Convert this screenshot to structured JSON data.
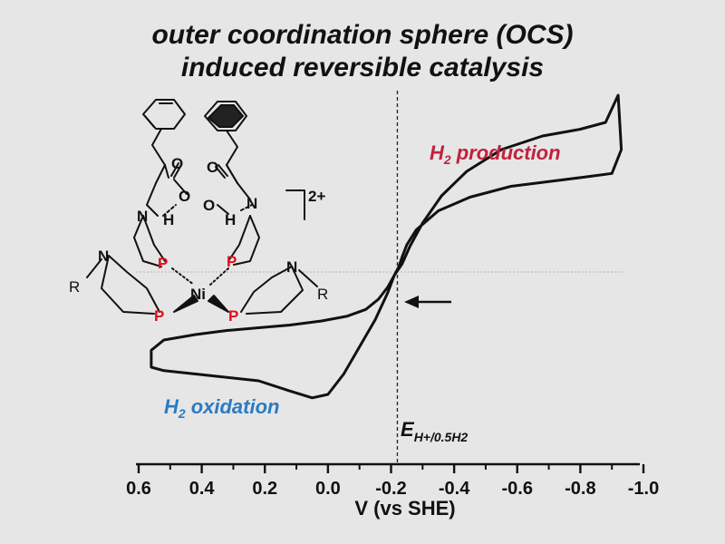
{
  "title_line1": "outer coordination sphere (OCS)",
  "title_line2": "induced reversible catalysis",
  "molecule": {
    "atoms": [
      "N",
      "H",
      "O",
      "O",
      "N",
      "H",
      "O",
      "O",
      "N",
      "N",
      "P",
      "P",
      "P",
      "P",
      "Ni",
      "R",
      "R"
    ],
    "charge": "2+"
  },
  "chart_data": {
    "type": "line",
    "title": "",
    "xlabel": "V (vs SHE)",
    "ylabel": "",
    "xlim": [
      0.6,
      -1.0
    ],
    "x_reversed": true,
    "x_ticks": [
      "0.6",
      "0.4",
      "0.2",
      "0.0",
      "-0.2",
      "-0.4",
      "-0.6",
      "-0.8",
      "-1.0"
    ],
    "x_tick_values": [
      0.6,
      0.4,
      0.2,
      0.0,
      -0.2,
      -0.4,
      -0.6,
      -0.8,
      -1.0
    ],
    "y_axis_shown": false,
    "reference_potential": {
      "x": -0.22,
      "label_main": "E",
      "label_sub": "H+/0.5H2"
    },
    "annotations": {
      "reduction": {
        "text": "production",
        "prefix": "H",
        "sub": "2",
        "color": "#c0223b"
      },
      "oxidation": {
        "text": "oxidation",
        "prefix": "H",
        "sub": "2",
        "color": "#2a7bc4"
      }
    },
    "series": [
      {
        "color": "#111111",
        "x": [
          -0.92,
          -0.93,
          -0.9,
          -0.82,
          -0.7,
          -0.58,
          -0.45,
          -0.35,
          -0.28,
          -0.25,
          -0.235,
          -0.225,
          -0.21,
          -0.19,
          -0.16,
          -0.12,
          -0.06,
          0.02,
          0.12,
          0.22,
          0.32,
          0.42,
          0.52,
          0.56,
          0.56,
          0.52,
          0.42,
          0.32,
          0.22,
          0.12,
          0.05,
          0.0,
          -0.05,
          -0.1,
          -0.15,
          -0.19,
          -0.21,
          -0.235,
          -0.26,
          -0.3,
          -0.36,
          -0.44,
          -0.55,
          -0.68,
          -0.8,
          -0.88,
          -0.92
        ],
        "y": [
          2.6,
          1.8,
          1.45,
          1.4,
          1.33,
          1.26,
          1.1,
          0.9,
          0.62,
          0.4,
          0.22,
          0.08,
          -0.05,
          -0.22,
          -0.4,
          -0.55,
          -0.65,
          -0.72,
          -0.78,
          -0.82,
          -0.86,
          -0.92,
          -1.0,
          -1.15,
          -1.4,
          -1.45,
          -1.5,
          -1.55,
          -1.6,
          -1.75,
          -1.85,
          -1.8,
          -1.5,
          -1.1,
          -0.7,
          -0.3,
          -0.05,
          0.12,
          0.38,
          0.72,
          1.12,
          1.48,
          1.8,
          2.0,
          2.1,
          2.2,
          2.6
        ]
      }
    ]
  }
}
